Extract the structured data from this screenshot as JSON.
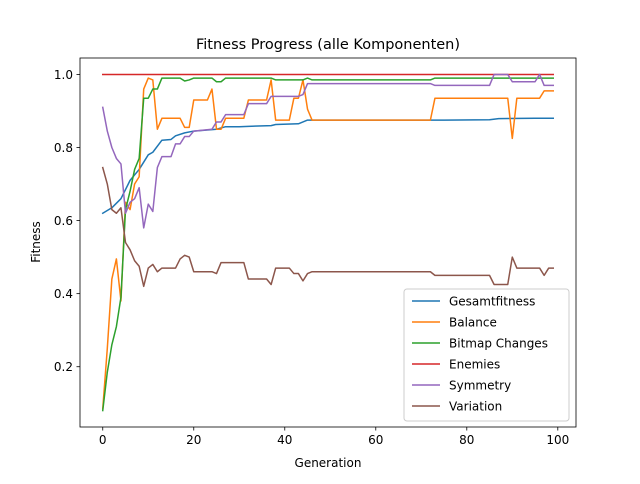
{
  "chart_data": {
    "type": "line",
    "title": "Fitness Progress (alle Komponenten)",
    "xlabel": "Generation",
    "ylabel": "Fitness",
    "xlim": [
      -5,
      104
    ],
    "ylim": [
      0.035,
      1.045
    ],
    "xticks": [
      0,
      20,
      40,
      60,
      80,
      100
    ],
    "yticks": [
      0.2,
      0.4,
      0.6,
      0.8,
      1.0
    ],
    "xtick_labels": [
      "0",
      "20",
      "40",
      "60",
      "80",
      "100"
    ],
    "ytick_labels": [
      "0.2",
      "0.4",
      "0.6",
      "0.8",
      "1.0"
    ],
    "grid": false,
    "legend_position": "lower-right",
    "series": [
      {
        "name": "Gesamtfitness",
        "color": "#1f77b4",
        "points": [
          [
            0,
            0.62
          ],
          [
            2,
            0.635
          ],
          [
            4,
            0.66
          ],
          [
            6,
            0.71
          ],
          [
            8,
            0.74
          ],
          [
            10,
            0.78
          ],
          [
            11,
            0.787
          ],
          [
            13,
            0.82
          ],
          [
            15,
            0.822
          ],
          [
            16,
            0.832
          ],
          [
            18,
            0.84
          ],
          [
            20,
            0.845
          ],
          [
            25,
            0.85
          ],
          [
            27,
            0.857
          ],
          [
            30,
            0.857
          ],
          [
            32,
            0.858
          ],
          [
            37,
            0.86
          ],
          [
            38,
            0.863
          ],
          [
            43,
            0.865
          ],
          [
            45,
            0.875
          ],
          [
            60,
            0.875
          ],
          [
            75,
            0.875
          ],
          [
            85,
            0.876
          ],
          [
            87,
            0.879
          ],
          [
            95,
            0.88
          ],
          [
            99,
            0.88
          ]
        ]
      },
      {
        "name": "Balance",
        "color": "#ff7f0e",
        "points": [
          [
            0,
            0.085
          ],
          [
            1,
            0.25
          ],
          [
            2,
            0.44
          ],
          [
            3,
            0.495
          ],
          [
            4,
            0.38
          ],
          [
            5,
            0.65
          ],
          [
            6,
            0.63
          ],
          [
            7,
            0.7
          ],
          [
            8,
            0.72
          ],
          [
            9,
            0.96
          ],
          [
            10,
            0.99
          ],
          [
            11,
            0.985
          ],
          [
            12,
            0.85
          ],
          [
            13,
            0.88
          ],
          [
            17,
            0.88
          ],
          [
            18,
            0.855
          ],
          [
            19,
            0.855
          ],
          [
            20,
            0.93
          ],
          [
            23,
            0.93
          ],
          [
            24,
            0.96
          ],
          [
            25,
            0.85
          ],
          [
            26,
            0.85
          ],
          [
            27,
            0.88
          ],
          [
            31,
            0.88
          ],
          [
            32,
            0.93
          ],
          [
            36,
            0.93
          ],
          [
            37,
            0.985
          ],
          [
            38,
            0.875
          ],
          [
            41,
            0.875
          ],
          [
            42,
            0.935
          ],
          [
            43,
            0.935
          ],
          [
            44,
            0.985
          ],
          [
            45,
            0.905
          ],
          [
            46,
            0.875
          ],
          [
            72,
            0.875
          ],
          [
            73,
            0.935
          ],
          [
            89,
            0.935
          ],
          [
            90,
            0.825
          ],
          [
            91,
            0.935
          ],
          [
            96,
            0.935
          ],
          [
            97,
            0.955
          ],
          [
            99,
            0.955
          ]
        ]
      },
      {
        "name": "Bitmap Changes",
        "color": "#2ca02c",
        "points": [
          [
            0,
            0.08
          ],
          [
            1,
            0.185
          ],
          [
            2,
            0.26
          ],
          [
            3,
            0.31
          ],
          [
            4,
            0.39
          ],
          [
            5,
            0.63
          ],
          [
            6,
            0.68
          ],
          [
            7,
            0.74
          ],
          [
            8,
            0.77
          ],
          [
            9,
            0.935
          ],
          [
            10,
            0.935
          ],
          [
            11,
            0.96
          ],
          [
            12,
            0.96
          ],
          [
            13,
            0.99
          ],
          [
            17,
            0.99
          ],
          [
            18,
            0.982
          ],
          [
            19,
            0.985
          ],
          [
            20,
            0.99
          ],
          [
            24,
            0.99
          ],
          [
            25,
            0.98
          ],
          [
            26,
            0.98
          ],
          [
            27,
            0.99
          ],
          [
            37,
            0.99
          ],
          [
            38,
            0.985
          ],
          [
            44,
            0.985
          ],
          [
            45,
            0.99
          ],
          [
            46,
            0.985
          ],
          [
            72,
            0.985
          ],
          [
            73,
            0.99
          ],
          [
            99,
            0.99
          ]
        ]
      },
      {
        "name": "Enemies",
        "color": "#d62728",
        "points": [
          [
            0,
            1.0
          ],
          [
            99,
            1.0
          ]
        ]
      },
      {
        "name": "Symmetry",
        "color": "#9467bd",
        "points": [
          [
            0,
            0.91
          ],
          [
            1,
            0.845
          ],
          [
            2,
            0.8
          ],
          [
            3,
            0.77
          ],
          [
            4,
            0.755
          ],
          [
            5,
            0.62
          ],
          [
            6,
            0.65
          ],
          [
            7,
            0.66
          ],
          [
            8,
            0.69
          ],
          [
            9,
            0.58
          ],
          [
            10,
            0.645
          ],
          [
            11,
            0.625
          ],
          [
            12,
            0.745
          ],
          [
            13,
            0.775
          ],
          [
            15,
            0.775
          ],
          [
            16,
            0.81
          ],
          [
            17,
            0.81
          ],
          [
            18,
            0.83
          ],
          [
            19,
            0.83
          ],
          [
            20,
            0.845
          ],
          [
            24,
            0.85
          ],
          [
            25,
            0.87
          ],
          [
            26,
            0.87
          ],
          [
            27,
            0.89
          ],
          [
            31,
            0.89
          ],
          [
            32,
            0.92
          ],
          [
            36,
            0.92
          ],
          [
            37,
            0.94
          ],
          [
            43,
            0.94
          ],
          [
            44,
            0.945
          ],
          [
            45,
            0.975
          ],
          [
            72,
            0.975
          ],
          [
            73,
            0.97
          ],
          [
            85,
            0.97
          ],
          [
            86,
            1.0
          ],
          [
            89,
            1.0
          ],
          [
            90,
            0.98
          ],
          [
            95,
            0.98
          ],
          [
            96,
            1.0
          ],
          [
            97,
            0.97
          ],
          [
            99,
            0.97
          ]
        ]
      },
      {
        "name": "Variation",
        "color": "#8c564b",
        "points": [
          [
            0,
            0.745
          ],
          [
            1,
            0.7
          ],
          [
            2,
            0.63
          ],
          [
            3,
            0.62
          ],
          [
            4,
            0.635
          ],
          [
            5,
            0.54
          ],
          [
            6,
            0.52
          ],
          [
            7,
            0.49
          ],
          [
            8,
            0.475
          ],
          [
            9,
            0.42
          ],
          [
            10,
            0.47
          ],
          [
            11,
            0.48
          ],
          [
            12,
            0.46
          ],
          [
            13,
            0.47
          ],
          [
            16,
            0.47
          ],
          [
            17,
            0.495
          ],
          [
            18,
            0.505
          ],
          [
            19,
            0.5
          ],
          [
            20,
            0.46
          ],
          [
            24,
            0.46
          ],
          [
            25,
            0.455
          ],
          [
            26,
            0.485
          ],
          [
            31,
            0.485
          ],
          [
            32,
            0.44
          ],
          [
            36,
            0.44
          ],
          [
            37,
            0.425
          ],
          [
            38,
            0.47
          ],
          [
            41,
            0.47
          ],
          [
            42,
            0.455
          ],
          [
            43,
            0.455
          ],
          [
            44,
            0.435
          ],
          [
            45,
            0.455
          ],
          [
            46,
            0.46
          ],
          [
            72,
            0.46
          ],
          [
            73,
            0.45
          ],
          [
            85,
            0.45
          ],
          [
            86,
            0.425
          ],
          [
            89,
            0.425
          ],
          [
            90,
            0.5
          ],
          [
            91,
            0.47
          ],
          [
            96,
            0.47
          ],
          [
            97,
            0.45
          ],
          [
            98,
            0.47
          ],
          [
            99,
            0.47
          ]
        ]
      }
    ]
  }
}
